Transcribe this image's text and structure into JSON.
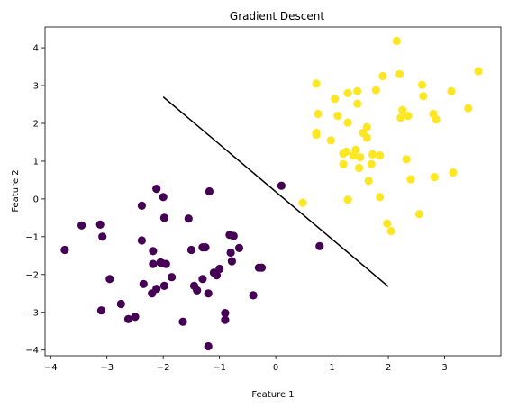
{
  "chart_data": {
    "type": "scatter",
    "title": "Gradient Descent",
    "xlabel": "Feature 1",
    "ylabel": "Feature 2",
    "xlim": [
      -4.1,
      4.0
    ],
    "ylim": [
      -4.15,
      4.55
    ],
    "xticks": [
      "-4",
      "-3",
      "-2",
      "-1",
      "0",
      "1",
      "2",
      "3"
    ],
    "yticks": [
      "-4",
      "-3",
      "-2",
      "-1",
      "0",
      "1",
      "2",
      "3",
      "4"
    ],
    "grid": false,
    "legend": "none",
    "colors": {
      "class_0": "#440154",
      "class_1": "#fde725",
      "boundary": "#000000"
    },
    "series": [
      {
        "class": 0,
        "points": [
          [
            -3.75,
            -1.35
          ],
          [
            -3.45,
            -0.7
          ],
          [
            -3.12,
            -0.68
          ],
          [
            -3.08,
            -1.0
          ],
          [
            -3.1,
            -2.95
          ],
          [
            -2.95,
            -2.12
          ],
          [
            -2.75,
            -2.78
          ],
          [
            -2.62,
            -3.18
          ],
          [
            -2.5,
            -3.12
          ],
          [
            -2.38,
            -1.1
          ],
          [
            -2.38,
            -0.18
          ],
          [
            -2.35,
            -2.25
          ],
          [
            -2.2,
            -2.5
          ],
          [
            -2.18,
            -1.38
          ],
          [
            -2.18,
            -1.72
          ],
          [
            -2.12,
            -2.38
          ],
          [
            -2.12,
            0.27
          ],
          [
            -2.05,
            -1.68
          ],
          [
            -2.02,
            -1.7
          ],
          [
            -2.0,
            0.05
          ],
          [
            -1.98,
            -0.5
          ],
          [
            -1.98,
            -2.3
          ],
          [
            -1.95,
            -1.72
          ],
          [
            -1.85,
            -2.07
          ],
          [
            -1.65,
            -3.25
          ],
          [
            -1.55,
            -0.52
          ],
          [
            -1.5,
            -1.35
          ],
          [
            -1.45,
            -2.3
          ],
          [
            -1.4,
            -2.42
          ],
          [
            -1.3,
            -1.28
          ],
          [
            -1.3,
            -2.12
          ],
          [
            -1.25,
            -1.28
          ],
          [
            -1.2,
            -3.9
          ],
          [
            -1.2,
            -2.5
          ],
          [
            -1.18,
            0.2
          ],
          [
            -1.1,
            -1.95
          ],
          [
            -1.05,
            -2.02
          ],
          [
            -1.0,
            -1.85
          ],
          [
            -0.9,
            -3.02
          ],
          [
            -0.9,
            -3.2
          ],
          [
            -0.82,
            -0.95
          ],
          [
            -0.8,
            -1.42
          ],
          [
            -0.78,
            -1.65
          ],
          [
            -0.75,
            -0.98
          ],
          [
            -0.65,
            -1.3
          ],
          [
            -0.4,
            -2.55
          ],
          [
            -0.3,
            -1.82
          ],
          [
            -0.25,
            -1.82
          ],
          [
            0.1,
            0.35
          ],
          [
            0.78,
            -1.25
          ]
        ]
      },
      {
        "class": 1,
        "points": [
          [
            0.48,
            -0.1
          ],
          [
            0.72,
            1.75
          ],
          [
            0.72,
            1.7
          ],
          [
            0.72,
            3.05
          ],
          [
            0.75,
            2.25
          ],
          [
            0.98,
            1.55
          ],
          [
            1.05,
            2.65
          ],
          [
            1.1,
            2.2
          ],
          [
            1.2,
            0.92
          ],
          [
            1.2,
            1.2
          ],
          [
            1.25,
            1.25
          ],
          [
            1.28,
            2.8
          ],
          [
            1.28,
            2.02
          ],
          [
            1.28,
            -0.02
          ],
          [
            1.38,
            1.15
          ],
          [
            1.42,
            1.3
          ],
          [
            1.45,
            2.85
          ],
          [
            1.45,
            2.52
          ],
          [
            1.48,
            0.82
          ],
          [
            1.5,
            1.1
          ],
          [
            1.55,
            1.75
          ],
          [
            1.62,
            1.62
          ],
          [
            1.62,
            1.9
          ],
          [
            1.65,
            0.48
          ],
          [
            1.7,
            0.92
          ],
          [
            1.72,
            1.18
          ],
          [
            1.78,
            2.88
          ],
          [
            1.85,
            1.15
          ],
          [
            1.85,
            0.05
          ],
          [
            1.9,
            3.25
          ],
          [
            1.98,
            -0.65
          ],
          [
            2.05,
            -0.85
          ],
          [
            2.15,
            4.18
          ],
          [
            2.2,
            3.3
          ],
          [
            2.22,
            2.15
          ],
          [
            2.25,
            2.35
          ],
          [
            2.32,
            1.05
          ],
          [
            2.35,
            2.2
          ],
          [
            2.4,
            0.52
          ],
          [
            2.55,
            -0.4
          ],
          [
            2.6,
            3.02
          ],
          [
            2.62,
            2.72
          ],
          [
            2.8,
            2.25
          ],
          [
            2.82,
            0.58
          ],
          [
            2.85,
            2.1
          ],
          [
            3.12,
            2.85
          ],
          [
            3.15,
            0.7
          ],
          [
            3.42,
            2.4
          ],
          [
            3.6,
            3.38
          ]
        ]
      }
    ],
    "boundary_line": {
      "x": [
        -2.0,
        2.0
      ],
      "y": [
        2.7,
        -2.32
      ]
    }
  }
}
